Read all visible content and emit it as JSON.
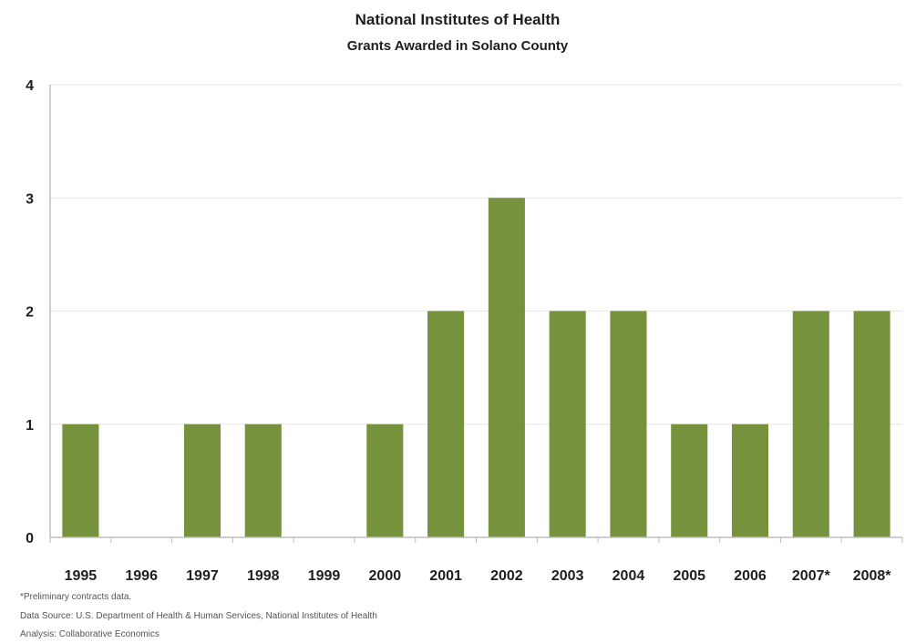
{
  "chart_data": {
    "type": "bar",
    "title": "National Institutes of Health",
    "subtitle": "Grants Awarded in Solano County",
    "categories": [
      "1995",
      "1996",
      "1997",
      "1998",
      "1999",
      "2000",
      "2001",
      "2002",
      "2003",
      "2004",
      "2005",
      "2006",
      "2007*",
      "2008*"
    ],
    "values": [
      1,
      0,
      1,
      1,
      0,
      1,
      2,
      3,
      2,
      2,
      1,
      1,
      2,
      2
    ],
    "ylim": [
      0,
      4
    ],
    "yticks": [
      "0",
      "1",
      "2",
      "3",
      "4"
    ],
    "grid": true,
    "xlabel": "",
    "ylabel": "",
    "bar_color": "#76923c"
  },
  "notes": {
    "preliminary": "*Preliminary contracts data.",
    "source": "Data Source: U.S. Department of Health & Human Services, National Institutes of Health",
    "analysis": "Analysis: Collaborative Economics"
  }
}
